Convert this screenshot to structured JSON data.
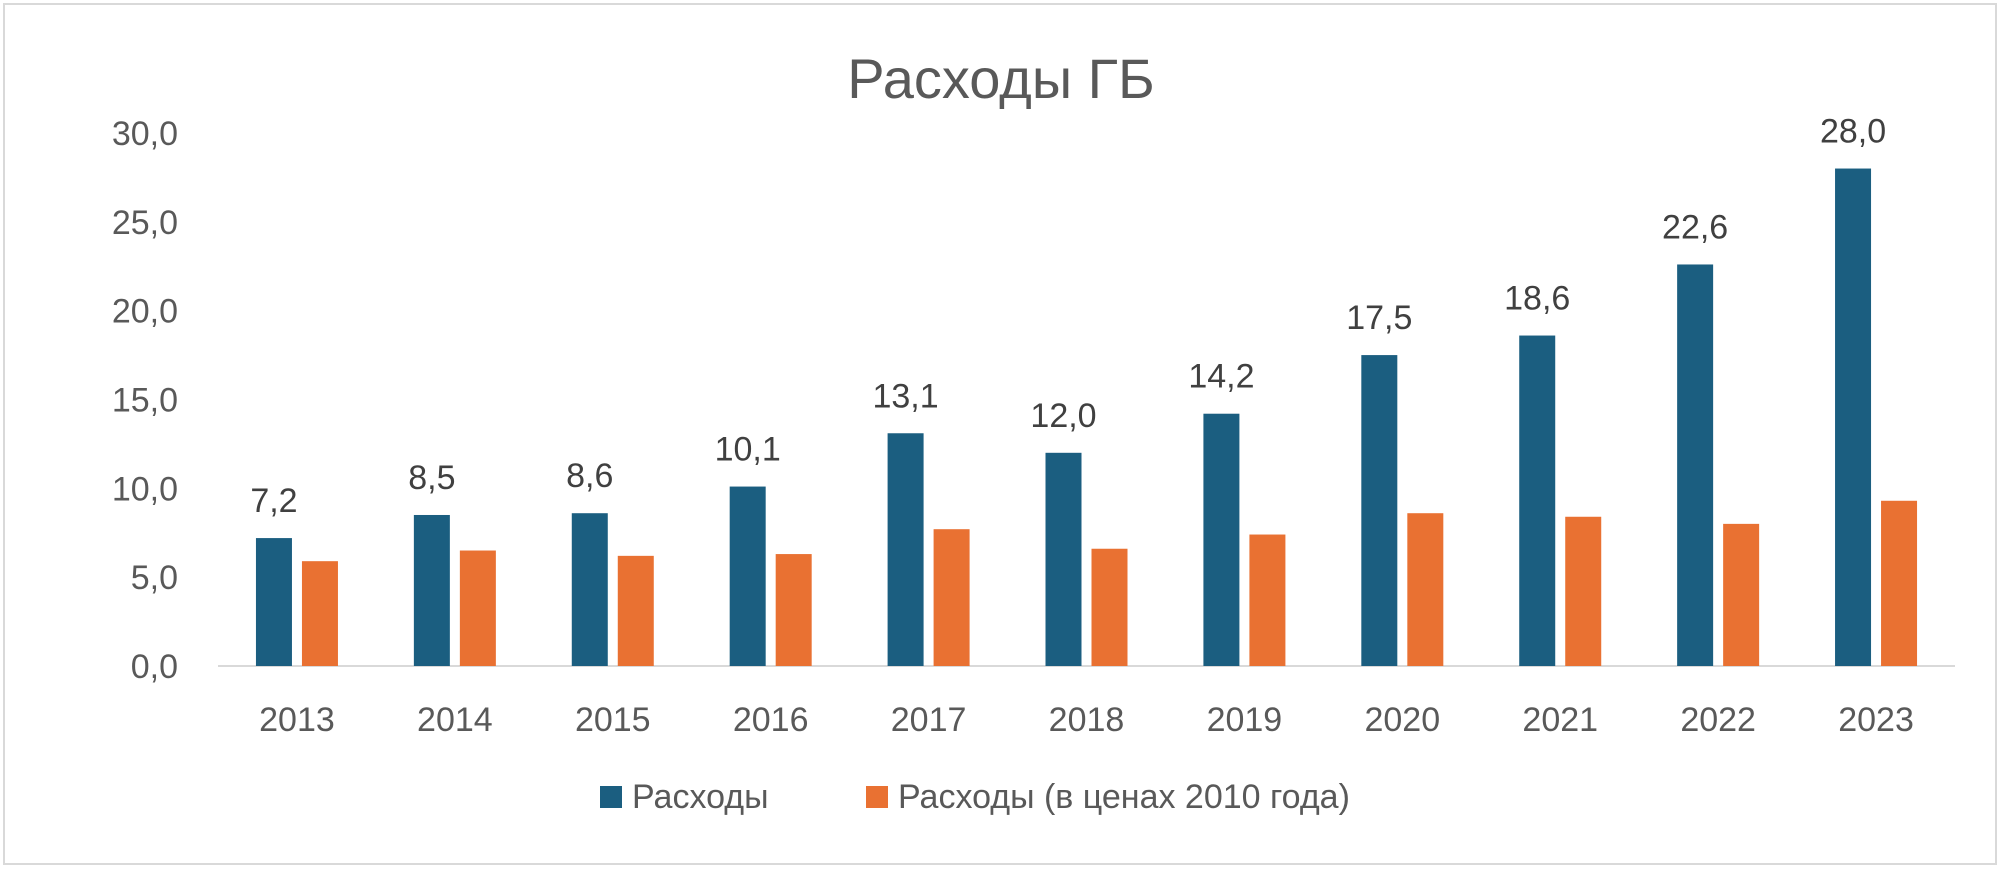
{
  "chart_data": {
    "type": "bar",
    "title": "Расходы ГБ",
    "xlabel": "",
    "ylabel": "",
    "categories": [
      "2013",
      "2014",
      "2015",
      "2016",
      "2017",
      "2018",
      "2019",
      "2020",
      "2021",
      "2022",
      "2023"
    ],
    "series": [
      {
        "name": "Расходы",
        "color": "#1b5e80",
        "values": [
          7.2,
          8.5,
          8.6,
          10.1,
          13.1,
          12.0,
          14.2,
          17.5,
          18.6,
          22.6,
          28.0
        ],
        "data_labels": [
          "7,2",
          "8,5",
          "8,6",
          "10,1",
          "13,1",
          "12,0",
          "14,2",
          "17,5",
          "18,6",
          "22,6",
          "28,0"
        ]
      },
      {
        "name": "Расходы (в ценах 2010 года)",
        "color": "#e97132",
        "values": [
          5.9,
          6.5,
          6.2,
          6.3,
          7.7,
          6.6,
          7.4,
          8.6,
          8.4,
          8.0,
          9.3
        ]
      }
    ],
    "ylim": [
      0,
      30
    ],
    "yticks": [
      0,
      5,
      10,
      15,
      20,
      25,
      30
    ],
    "ytick_labels": [
      "0,0",
      "5,0",
      "10,0",
      "15,0",
      "20,0",
      "25,0",
      "30,0"
    ],
    "grid": false,
    "legend_position": "bottom"
  }
}
